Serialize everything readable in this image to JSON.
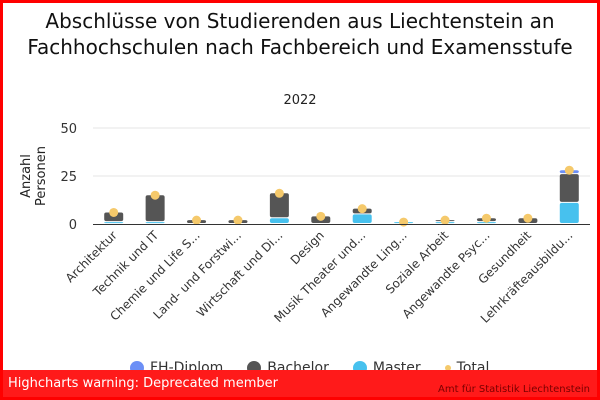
{
  "chart_data": {
    "type": "bar",
    "stacked": true,
    "title": "Abschlüsse von Studierenden aus Liechtenstein an Fachhochschulen nach Fachbereich und Examensstufe",
    "subtitle": "2022",
    "ylabel": "Anzahl Personen",
    "ylim": [
      0,
      50
    ],
    "yticks": [
      "0",
      "25",
      "50"
    ],
    "categories": [
      "Architektur",
      "Technik und IT",
      "Chemie und Life S...",
      "Land- und Forstwi...",
      "Wirtschaft und Di...",
      "Design",
      "Musik Theater und...",
      "Angewandte Ling...",
      "Soziale Arbeit",
      "Angewandte Psyc...",
      "Gesundheit",
      "Lehrkräfteausbildu..."
    ],
    "series": [
      {
        "name": "FH-Diplom",
        "color": "#6c8ff6",
        "values": [
          0,
          0,
          0,
          0,
          0,
          0,
          0,
          0,
          0,
          0,
          0,
          2
        ]
      },
      {
        "name": "Bachelor",
        "color": "#555555",
        "values": [
          5,
          14,
          2,
          2,
          13,
          4,
          3,
          0,
          1,
          2,
          3,
          15
        ]
      },
      {
        "name": "Master",
        "color": "#47c1ee",
        "values": [
          1,
          1,
          0,
          0,
          3,
          0,
          5,
          1,
          1,
          1,
          0,
          11
        ]
      },
      {
        "name": "Total",
        "color": "#f5c96b",
        "values": [
          6,
          15,
          2,
          2,
          16,
          4,
          8,
          1,
          2,
          3,
          3,
          28
        ]
      }
    ],
    "legend": "bottom"
  },
  "warning": "Highcharts warning: Deprecated member",
  "credits": "Amt für Statistik Liechtenstein"
}
